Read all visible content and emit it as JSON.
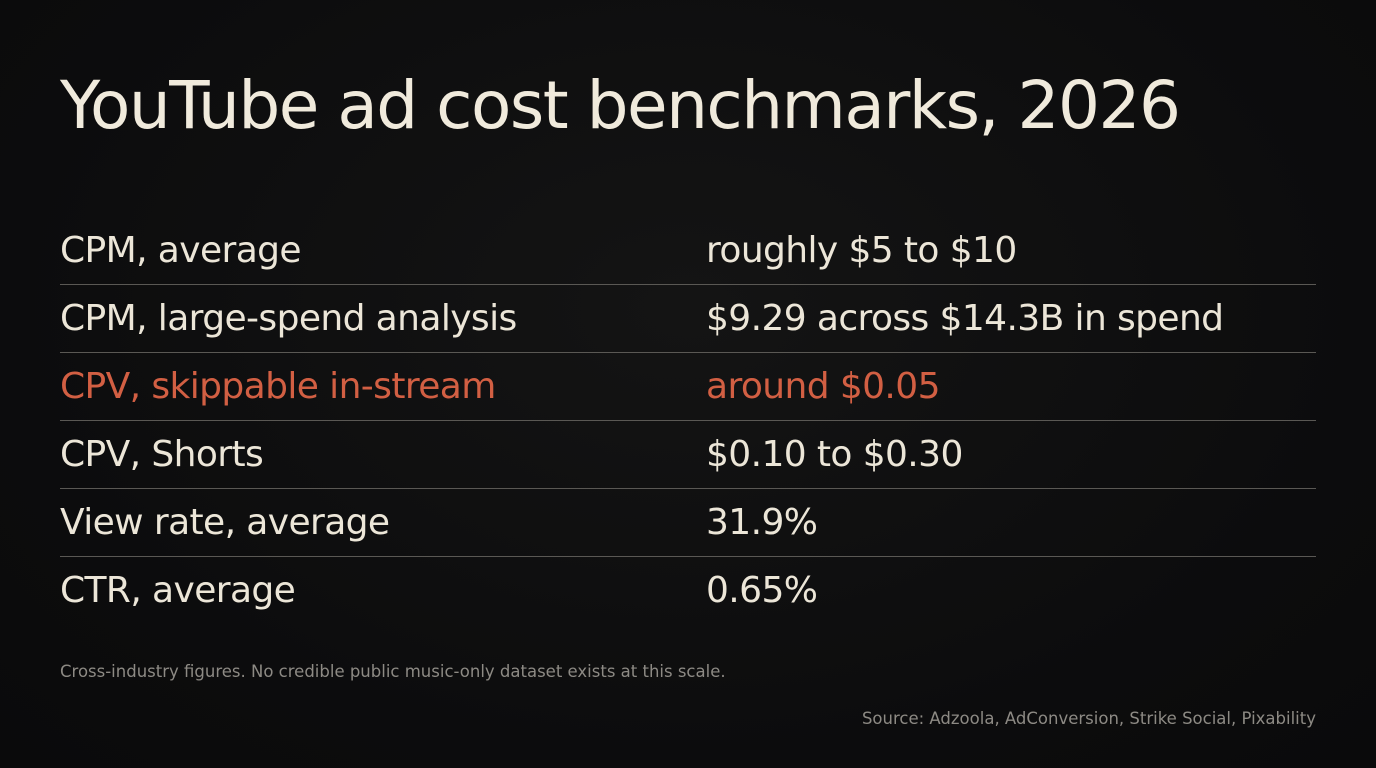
{
  "title": "YouTube ad cost benchmarks, 2026",
  "rows": [
    {
      "label": "CPM, average",
      "value": "roughly $5 to $10"
    },
    {
      "label": "CPM, large-spend analysis",
      "value": "$9.29 across $14.3B in spend"
    },
    {
      "label": "CPV, skippable in-stream",
      "value": "around $0.05"
    },
    {
      "label": "CPV, Shorts",
      "value": "$0.10 to $0.30"
    },
    {
      "label": "View rate, average",
      "value": "31.9%"
    },
    {
      "label": "CTR, average",
      "value": "0.65%"
    }
  ],
  "highlight_row_index": 2,
  "colors": {
    "background": "#0d0d0e",
    "text": "#ece6d8",
    "highlight": "#d25f43",
    "muted": "#8d8a84",
    "divider": "#5a5854"
  },
  "footnote": "Cross-industry figures. No credible public music-only dataset exists at this scale.",
  "source": "Source: Adzoola, AdConversion, Strike Social, Pixability"
}
